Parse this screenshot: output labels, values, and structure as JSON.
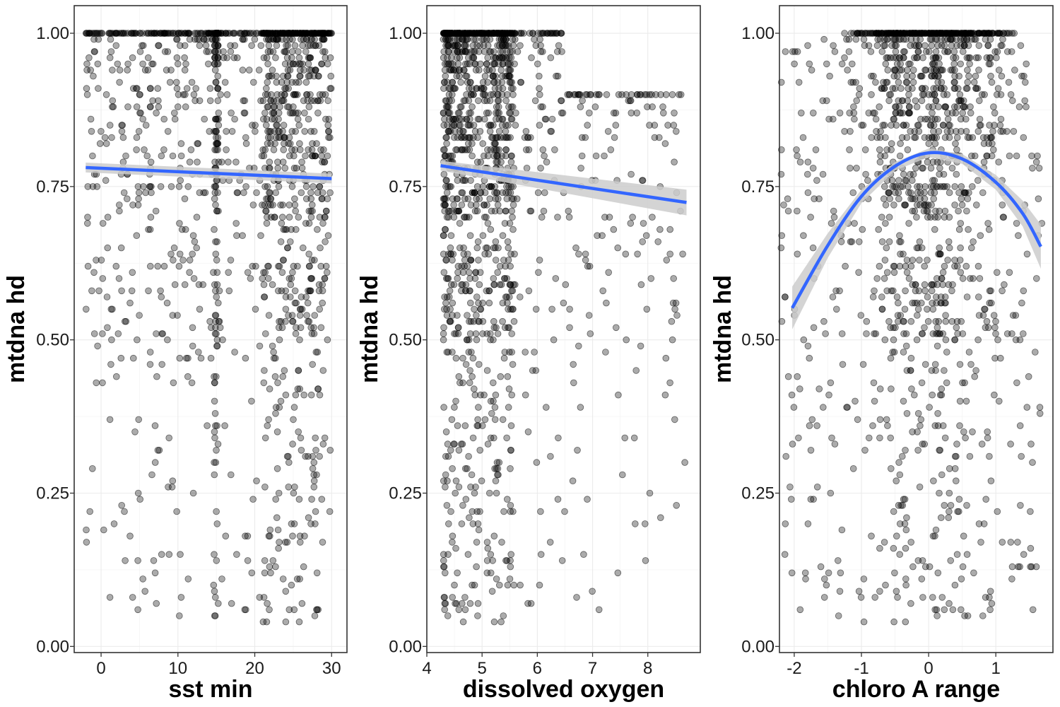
{
  "colors": {
    "points": "#000000",
    "fit_line": "#3366FF",
    "ribbon": "#cccccc",
    "panel_border": "#333333",
    "grid": "#ebebeb"
  },
  "chart_data": [
    {
      "type": "scatter",
      "xlabel": "sst min",
      "ylabel": "mtdna hd",
      "xlim": [
        -3.5,
        32
      ],
      "ylim": [
        -0.01,
        1.045
      ],
      "x_ticks": [
        0,
        10,
        20,
        30
      ],
      "x_tick_labels": [
        "0",
        "10",
        "20",
        "30"
      ],
      "y_ticks": [
        0,
        0.25,
        0.5,
        0.75,
        1
      ],
      "y_tick_labels": [
        "0.00",
        "0.25",
        "0.50",
        "0.75",
        "1.00"
      ],
      "grid": true,
      "fit": {
        "method": "linear",
        "x": [
          -2,
          30
        ],
        "y": [
          0.781,
          0.763
        ],
        "se_upper": [
          0.789,
          0.771
        ],
        "se_lower": [
          0.773,
          0.755
        ]
      },
      "points": {
        "n": 1400,
        "x_range": [
          -2,
          30
        ],
        "note": "dense cluster of values at 1.00; spread down to about 0.04",
        "sample": [
          [
            0,
            1.0
          ],
          [
            10,
            0.95
          ],
          [
            15,
            0.5
          ],
          [
            20,
            0.3
          ],
          [
            27,
            0.8
          ],
          [
            28.5,
            0.07
          ]
        ]
      }
    },
    {
      "type": "scatter",
      "xlabel": "dissolved oxygen",
      "ylabel": "mtdna hd",
      "xlim": [
        4.0,
        8.95
      ],
      "ylim": [
        -0.01,
        1.045
      ],
      "x_ticks": [
        4,
        5,
        6,
        7,
        8
      ],
      "x_tick_labels": [
        "4",
        "5",
        "6",
        "7",
        "8"
      ],
      "y_ticks": [
        0,
        0.25,
        0.5,
        0.75,
        1
      ],
      "y_tick_labels": [
        "0.00",
        "0.25",
        "0.50",
        "0.75",
        "1.00"
      ],
      "grid": true,
      "fit": {
        "method": "linear",
        "x": [
          4.25,
          8.7
        ],
        "y": [
          0.784,
          0.724
        ],
        "se_upper": [
          0.792,
          0.745
        ],
        "se_lower": [
          0.776,
          0.703
        ]
      },
      "points": {
        "n": 1400,
        "x_range": [
          4.2,
          8.7
        ],
        "note": "most points between 4.3 and 5.5",
        "sample": [
          [
            4.6,
            1.0
          ],
          [
            5.0,
            0.5
          ],
          [
            6.1,
            0.7
          ],
          [
            7.2,
            0.3
          ],
          [
            8.7,
            0.88
          ]
        ]
      }
    },
    {
      "type": "scatter",
      "xlabel": "chloro A range",
      "ylabel": "mtdna hd",
      "xlim": [
        -2.22,
        1.85
      ],
      "ylim": [
        -0.01,
        1.045
      ],
      "x_ticks": [
        -2,
        -1,
        0,
        1
      ],
      "x_tick_labels": [
        "-2",
        "-1",
        "0",
        "1"
      ],
      "y_ticks": [
        0,
        0.25,
        0.5,
        0.75,
        1
      ],
      "y_tick_labels": [
        "0.00",
        "0.25",
        "0.50",
        "0.75",
        "1.00"
      ],
      "grid": true,
      "fit": {
        "method": "quadratic",
        "x": [
          -2.03,
          -1.5,
          -1.0,
          -0.5,
          0.0,
          0.5,
          1.0,
          1.4,
          1.67
        ],
        "y": [
          0.552,
          0.654,
          0.734,
          0.783,
          0.805,
          0.795,
          0.757,
          0.706,
          0.652
        ],
        "se_upper": [
          0.587,
          0.674,
          0.745,
          0.79,
          0.812,
          0.803,
          0.769,
          0.727,
          0.688
        ],
        "se_lower": [
          0.517,
          0.634,
          0.723,
          0.776,
          0.798,
          0.787,
          0.745,
          0.685,
          0.616
        ]
      },
      "points": {
        "n": 1400,
        "x_range": [
          -2.2,
          1.7
        ],
        "note": "dense band near 1.00 concentrated between -0.5 and 0.5",
        "sample": [
          [
            0,
            1.0
          ],
          [
            -0.9,
            0.25
          ],
          [
            0.5,
            0.7
          ],
          [
            1.65,
            0.06
          ],
          [
            -1.5,
            0.6
          ]
        ]
      }
    }
  ]
}
